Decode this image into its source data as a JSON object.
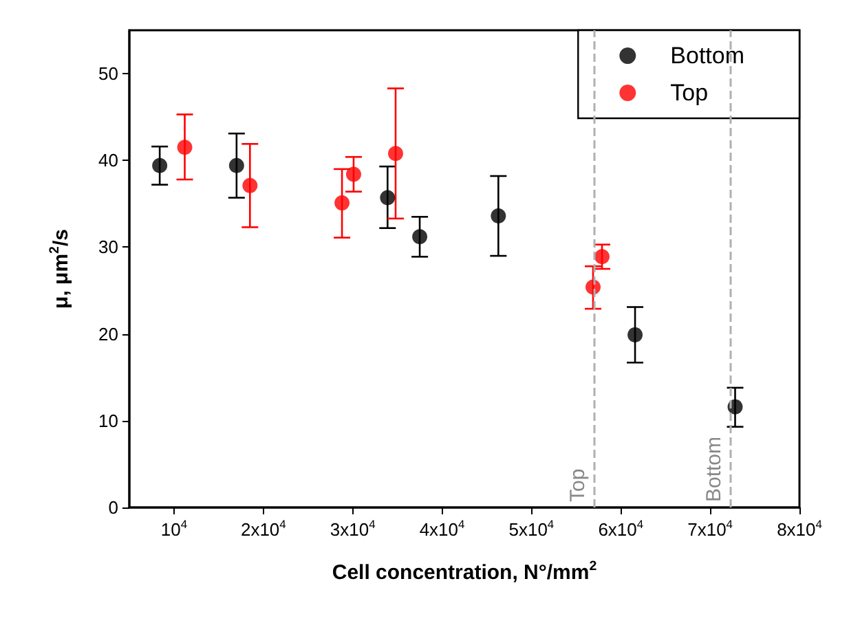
{
  "chart_data": {
    "type": "scatter",
    "xlabel": "Cell concentration, N°/mm$^{2}$",
    "ylabel": "μ, μm$^{2}$/s",
    "xlim": [
      5000,
      80000
    ],
    "xticks": [
      {
        "value": 10000,
        "label": "10$^{4}$"
      },
      {
        "value": 20000,
        "label": "2x10$^{4}$"
      },
      {
        "value": 30000,
        "label": "3x10$^{4}$"
      },
      {
        "value": 40000,
        "label": "4x10$^{4}$"
      },
      {
        "value": 50000,
        "label": "5x10$^{4}$"
      },
      {
        "value": 60000,
        "label": "6x10$^{4}$"
      },
      {
        "value": 70000,
        "label": "7x10$^{4}$"
      },
      {
        "value": 80000,
        "label": "8x10$^{4}$"
      }
    ],
    "ylim": [
      0,
      55
    ],
    "yticks": [
      0,
      10,
      20,
      30,
      40,
      50
    ],
    "grid": false,
    "legend": "top right",
    "marker": "circle",
    "series": [
      {
        "name": "Bottom",
        "color": "#000000",
        "x": [
          8400,
          17000,
          33900,
          37500,
          46300,
          61600,
          72800
        ],
        "values": [
          39.4,
          39.4,
          35.7,
          31.2,
          33.6,
          19.9,
          11.6
        ],
        "errors": [
          [
            37.2,
            41.6
          ],
          [
            35.7,
            43.1
          ],
          [
            32.2,
            39.3
          ],
          [
            28.9,
            33.5
          ],
          [
            29.0,
            38.2
          ],
          [
            16.7,
            23.1
          ],
          [
            9.3,
            13.8
          ]
        ]
      },
      {
        "name": "Top",
        "color": "#ff0000",
        "x": [
          11200,
          18500,
          28800,
          30100,
          34800,
          56900,
          57900
        ],
        "values": [
          41.5,
          37.1,
          35.1,
          38.4,
          40.8,
          25.4,
          28.9
        ],
        "errors": [
          [
            37.8,
            45.3
          ],
          [
            32.3,
            41.9
          ],
          [
            31.1,
            39.0
          ],
          [
            36.4,
            40.4
          ],
          [
            33.3,
            48.3
          ],
          [
            22.9,
            27.8
          ],
          [
            27.5,
            30.3
          ]
        ]
      }
    ],
    "ref_lines": [
      {
        "axis": "x",
        "value": 57000,
        "label": "Top",
        "color": "#b0b0b0",
        "line_style": "dashed"
      },
      {
        "axis": "x",
        "value": 72200,
        "label": "Bottom",
        "color": "#b0b0b0",
        "line_style": "dashed"
      }
    ]
  }
}
